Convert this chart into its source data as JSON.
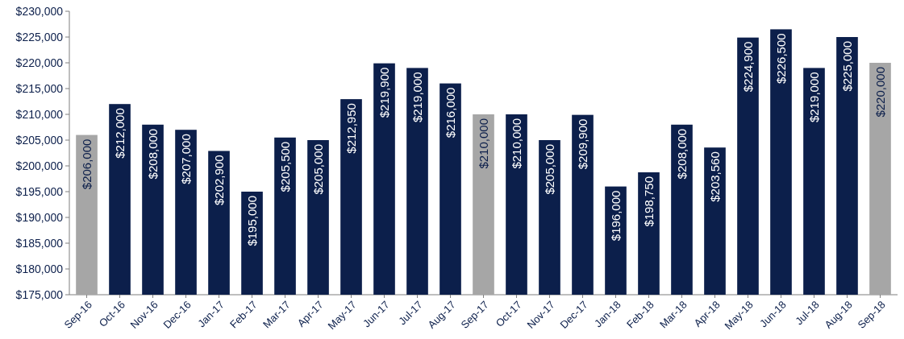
{
  "chart_data": {
    "type": "bar",
    "categories": [
      "Sep-16",
      "Oct-16",
      "Nov-16",
      "Dec-16",
      "Jan-17",
      "Feb-17",
      "Mar-17",
      "Apr-17",
      "May-17",
      "Jun-17",
      "Jul-17",
      "Aug-17",
      "Sep-17",
      "Oct-17",
      "Nov-17",
      "Dec-17",
      "Jan-18",
      "Feb-18",
      "Mar-18",
      "Apr-18",
      "May-18",
      "Jun-18",
      "Jul-18",
      "Aug-18",
      "Sep-18"
    ],
    "values": [
      206000,
      212000,
      208000,
      207000,
      202900,
      195000,
      205500,
      205000,
      212950,
      219900,
      219000,
      216000,
      210000,
      210000,
      205000,
      209900,
      196000,
      198750,
      208000,
      203560,
      224900,
      226500,
      219000,
      225000,
      220000
    ],
    "colors": [
      "#a6a6a6",
      "#0c1f4b",
      "#0c1f4b",
      "#0c1f4b",
      "#0c1f4b",
      "#0c1f4b",
      "#0c1f4b",
      "#0c1f4b",
      "#0c1f4b",
      "#0c1f4b",
      "#0c1f4b",
      "#0c1f4b",
      "#a6a6a6",
      "#0c1f4b",
      "#0c1f4b",
      "#0c1f4b",
      "#0c1f4b",
      "#0c1f4b",
      "#0c1f4b",
      "#0c1f4b",
      "#0c1f4b",
      "#0c1f4b",
      "#0c1f4b",
      "#0c1f4b",
      "#a6a6a6"
    ],
    "value_labels": [
      "$206,000",
      "$212,000",
      "$208,000",
      "$207,000",
      "$202,900",
      "$195,000",
      "$205,500",
      "$205,000",
      "$212,950",
      "$219,900",
      "$219,000",
      "$216,000",
      "$210,000",
      "$210,000",
      "$205,000",
      "$209,900",
      "$196,000",
      "$198,750",
      "$208,000",
      "$203,560",
      "$224,900",
      "$226,500",
      "$219,000",
      "$225,000",
      "$220,000"
    ],
    "ylim": [
      175000,
      230000
    ],
    "yticks": [
      {
        "value": 175000,
        "label": "$175,000"
      },
      {
        "value": 180000,
        "label": "$180,000"
      },
      {
        "value": 185000,
        "label": "$185,000"
      },
      {
        "value": 190000,
        "label": "$190,000"
      },
      {
        "value": 195000,
        "label": "$195,000"
      },
      {
        "value": 200000,
        "label": "$200,000"
      },
      {
        "value": 205000,
        "label": "$205,000"
      },
      {
        "value": 210000,
        "label": "$210,000"
      },
      {
        "value": 215000,
        "label": "$215,000"
      },
      {
        "value": 220000,
        "label": "$220,000"
      },
      {
        "value": 225000,
        "label": "$225,000"
      },
      {
        "value": 230000,
        "label": "$230,000"
      }
    ]
  }
}
